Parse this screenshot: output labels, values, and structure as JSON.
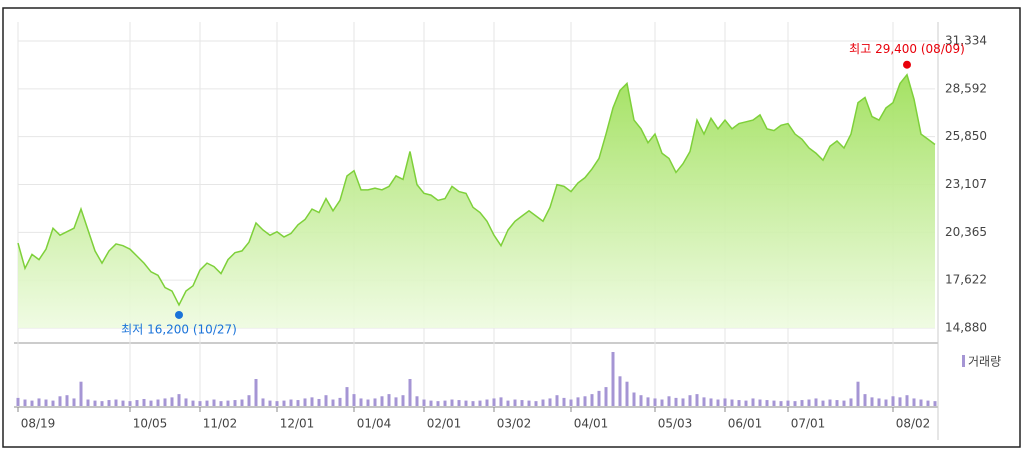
{
  "chart_data": [
    {
      "type": "area",
      "color": "#7ed03a",
      "categories": [
        "08/19",
        null,
        null,
        null,
        null,
        null,
        null,
        null,
        null,
        null,
        null,
        null,
        null,
        null,
        null,
        null,
        "10/05",
        null,
        null,
        null,
        null,
        null,
        null,
        null,
        null,
        null,
        "11/02",
        null,
        null,
        null,
        null,
        null,
        null,
        null,
        null,
        null,
        null,
        "12/01",
        null,
        null,
        null,
        null,
        null,
        null,
        null,
        null,
        null,
        null,
        "01/04",
        null,
        null,
        null,
        null,
        null,
        null,
        null,
        null,
        null,
        "02/01",
        null,
        null,
        null,
        null,
        null,
        null,
        null,
        null,
        null,
        "03/02",
        null,
        null,
        null,
        null,
        null,
        null,
        null,
        null,
        null,
        null,
        "04/01",
        null,
        null,
        null,
        null,
        null,
        null,
        null,
        null,
        null,
        null,
        null,
        "05/03",
        null,
        null,
        null,
        null,
        null,
        null,
        null,
        null,
        null,
        "06/01",
        null,
        null,
        null,
        null,
        null,
        null,
        null,
        null,
        "07/01",
        null,
        null,
        null,
        null,
        null,
        null,
        null,
        null,
        null,
        null,
        null,
        null,
        null,
        null,
        "08/02",
        null,
        null,
        null,
        null,
        null,
        null
      ],
      "values": [
        19750,
        18300,
        19100,
        18800,
        19400,
        20600,
        20200,
        20400,
        20600,
        21700,
        20500,
        19300,
        18600,
        19300,
        19700,
        19600,
        19400,
        19000,
        18600,
        18100,
        17900,
        17200,
        17000,
        16200,
        17000,
        17300,
        18200,
        18600,
        18400,
        18000,
        18800,
        19200,
        19300,
        19800,
        20900,
        20500,
        20200,
        20400,
        20100,
        20300,
        20800,
        21100,
        21700,
        21500,
        22300,
        21600,
        22200,
        23600,
        23900,
        22800,
        22800,
        22900,
        22800,
        23000,
        23600,
        23400,
        25000,
        23100,
        22600,
        22500,
        22200,
        22300,
        23000,
        22700,
        22600,
        21800,
        21500,
        21000,
        20200,
        19600,
        20500,
        21000,
        21300,
        21600,
        21300,
        21000,
        21800,
        23100,
        23000,
        22700,
        23200,
        23500,
        24000,
        24600,
        26000,
        27500,
        28500,
        28900,
        26800,
        26300,
        25500,
        26000,
        24900,
        24600,
        23800,
        24300,
        25000,
        26800,
        26000,
        26900,
        26300,
        26800,
        26300,
        26600,
        26700,
        26800,
        27100,
        26300,
        26200,
        26500,
        26600,
        26000,
        25700,
        25200,
        24900,
        24500,
        25300,
        25600,
        25200,
        26000,
        27800,
        28100,
        27000,
        26800,
        27500,
        27800,
        28900,
        29400,
        28000,
        26000,
        25700,
        25400
      ],
      "ylim": [
        14880,
        31334
      ],
      "yticks": [
        {
          "value": 31334,
          "label": "31,334"
        },
        {
          "value": 28592,
          "label": "28,592"
        },
        {
          "value": 25850,
          "label": "25,850"
        },
        {
          "value": 23107,
          "label": "23,107"
        },
        {
          "value": 20365,
          "label": "20,365"
        },
        {
          "value": 17622,
          "label": "17,622"
        },
        {
          "value": 14880,
          "label": "14,880"
        }
      ],
      "grid": true,
      "low": {
        "value": 16200,
        "label": "최저 16,200 (10/27)",
        "color": "#1a73d9"
      },
      "high": {
        "value": 29400,
        "label": "최고 29,400 (08/09)",
        "color": "#e8000b"
      }
    },
    {
      "type": "bar",
      "series": [
        {
          "name": "거래량",
          "color": "#a595d4",
          "values": [
            15,
            12,
            10,
            14,
            12,
            10,
            18,
            20,
            14,
            45,
            12,
            10,
            9,
            11,
            12,
            10,
            9,
            11,
            13,
            10,
            12,
            14,
            16,
            22,
            14,
            10,
            9,
            10,
            12,
            9,
            10,
            11,
            12,
            20,
            50,
            14,
            10,
            9,
            10,
            12,
            11,
            14,
            16,
            13,
            20,
            12,
            15,
            35,
            22,
            14,
            12,
            14,
            18,
            22,
            16,
            20,
            50,
            18,
            12,
            10,
            9,
            10,
            12,
            11,
            10,
            9,
            10,
            12,
            14,
            16,
            10,
            12,
            11,
            10,
            9,
            12,
            14,
            20,
            15,
            12,
            16,
            18,
            22,
            28,
            35,
            100,
            55,
            45,
            25,
            20,
            16,
            14,
            12,
            18,
            15,
            14,
            20,
            22,
            16,
            14,
            12,
            14,
            12,
            11,
            10,
            14,
            12,
            11,
            10,
            9,
            10,
            9,
            11,
            12,
            14,
            10,
            12,
            11,
            10,
            14,
            45,
            22,
            16,
            14,
            12,
            18,
            16,
            20,
            14,
            12,
            10,
            9
          ]
        }
      ],
      "ylim": [
        0,
        100
      ]
    }
  ]
}
